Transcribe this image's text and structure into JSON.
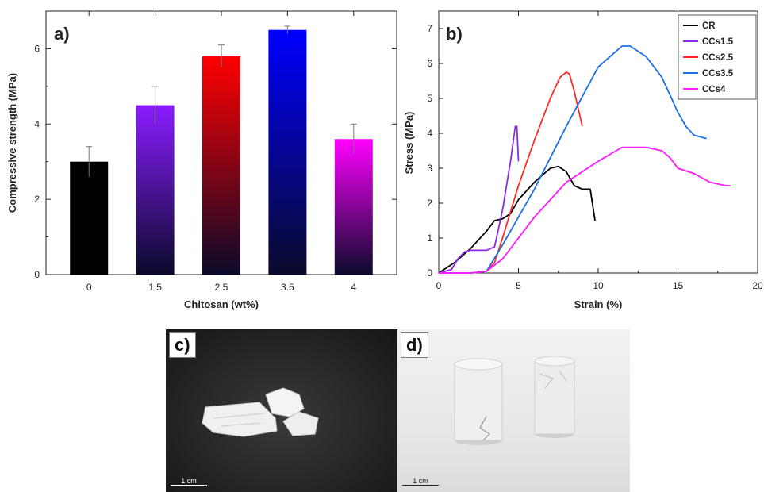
{
  "panel_labels": [
    "a)",
    "b)",
    "c)",
    "d)"
  ],
  "scale_bar_label": "1 cm",
  "chart_data": [
    {
      "type": "bar",
      "title": "",
      "xlabel": "Chitosan (wt%)",
      "ylabel": "Compressive strength (MPa)",
      "categories": [
        "0",
        "1.5",
        "2.5",
        "3.5",
        "4"
      ],
      "values": [
        3.0,
        4.5,
        5.8,
        6.5,
        3.6
      ],
      "errors": [
        0.4,
        0.5,
        0.3,
        0.1,
        0.4
      ],
      "ylim": [
        0,
        7
      ],
      "yticks": [
        0,
        2,
        4,
        6
      ],
      "bar_colors": [
        "#000000",
        "#8a1cff",
        "#ff0000",
        "#0000ff",
        "#ff00ff"
      ],
      "grid": false
    },
    {
      "type": "line",
      "title": "",
      "xlabel": "Strain (%)",
      "ylabel": "Stress (MPa)",
      "xlim": [
        0,
        20
      ],
      "ylim": [
        0,
        7.5
      ],
      "xticks": [
        0,
        5,
        10,
        15,
        20
      ],
      "yticks": [
        0,
        1,
        2,
        3,
        4,
        5,
        6,
        7
      ],
      "legend_position": "top-right",
      "series": [
        {
          "name": "CR",
          "color": "#000000",
          "x": [
            0,
            1,
            2,
            3,
            3.5,
            4,
            4.5,
            5,
            6,
            7,
            7.5,
            8,
            8.5,
            9,
            9.5,
            9.8
          ],
          "y": [
            0,
            0.3,
            0.7,
            1.2,
            1.5,
            1.55,
            1.7,
            2.1,
            2.6,
            3.0,
            3.05,
            2.9,
            2.5,
            2.4,
            2.4,
            1.5
          ]
        },
        {
          "name": "CCs1.5",
          "color": "#8a2be2",
          "x": [
            0,
            0.8,
            1.2,
            1.6,
            2.0,
            3.0,
            3.5,
            4.0,
            4.5,
            4.8,
            4.9,
            5.0
          ],
          "y": [
            0,
            0.1,
            0.4,
            0.6,
            0.65,
            0.65,
            0.75,
            1.8,
            3.2,
            4.2,
            4.2,
            3.2
          ]
        },
        {
          "name": "CCs2.5",
          "color": "#ff2a2a",
          "x": [
            0,
            2,
            3,
            3.5,
            4,
            5,
            6,
            7,
            7.6,
            8,
            8.2,
            8.5,
            8.8,
            9.0
          ],
          "y": [
            0,
            0,
            0.05,
            0.3,
            1.0,
            2.5,
            3.8,
            5.0,
            5.6,
            5.75,
            5.7,
            5.2,
            4.6,
            4.2
          ]
        },
        {
          "name": "CCs3.5",
          "color": "#1e6fe6",
          "x": [
            0,
            2,
            3,
            4,
            6,
            8,
            10,
            11.5,
            12,
            13,
            14,
            15,
            15.5,
            16,
            16.8
          ],
          "y": [
            0,
            0,
            0.05,
            0.8,
            2.4,
            4.2,
            5.9,
            6.5,
            6.5,
            6.2,
            5.6,
            4.6,
            4.2,
            3.95,
            3.85
          ]
        },
        {
          "name": "CCs4",
          "color": "#ff19ff",
          "x": [
            0,
            2,
            3,
            4,
            6,
            8,
            10,
            11.5,
            13,
            14,
            14.5,
            15,
            16,
            17,
            18,
            18.3
          ],
          "y": [
            0,
            0,
            0.05,
            0.4,
            1.6,
            2.6,
            3.2,
            3.6,
            3.6,
            3.5,
            3.3,
            3.0,
            2.85,
            2.6,
            2.5,
            2.5
          ]
        }
      ]
    }
  ]
}
